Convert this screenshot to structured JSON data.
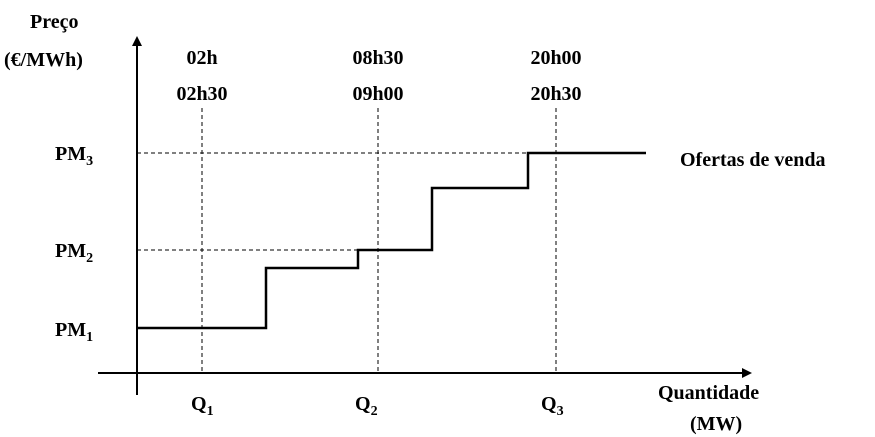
{
  "y_axis": {
    "label_line1": "Preço",
    "label_line2": "(€/MWh)"
  },
  "x_axis": {
    "label_line1": "Quantidade",
    "label_line2": "(MW)"
  },
  "price_levels": [
    {
      "base": "PM",
      "sub": "1"
    },
    {
      "base": "PM",
      "sub": "2"
    },
    {
      "base": "PM",
      "sub": "3"
    }
  ],
  "quantities": [
    {
      "base": "Q",
      "sub": "1"
    },
    {
      "base": "Q",
      "sub": "2"
    },
    {
      "base": "Q",
      "sub": "3"
    }
  ],
  "hours": [
    {
      "top": "02h",
      "bottom": "02h30"
    },
    {
      "top": "08h30",
      "bottom": "09h00"
    },
    {
      "top": "20h00",
      "bottom": "20h30"
    }
  ],
  "curve_label": "Ofertas de venda"
}
